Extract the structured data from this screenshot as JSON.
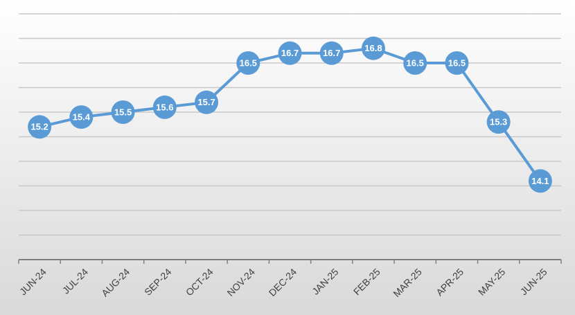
{
  "chart_data": {
    "type": "line",
    "categories": [
      "JUN-24",
      "JUL-24",
      "AUG-24",
      "SEP-24",
      "OCT-24",
      "NOV-24",
      "DEC-24",
      "JAN-25",
      "FEB-25",
      "MAR-25",
      "APR-25",
      "MAY-25",
      "JUN-25"
    ],
    "values": [
      15.2,
      15.4,
      15.5,
      15.6,
      15.7,
      16.5,
      16.7,
      16.7,
      16.8,
      16.5,
      16.5,
      15.3,
      14.1
    ],
    "color": "#5b9bd5",
    "ylim": [
      12.5,
      17.5
    ],
    "yticks": [
      12.5,
      13,
      13.5,
      14,
      14.5,
      15,
      15.5,
      16,
      16.5,
      17,
      17.5
    ],
    "grid": true
  }
}
